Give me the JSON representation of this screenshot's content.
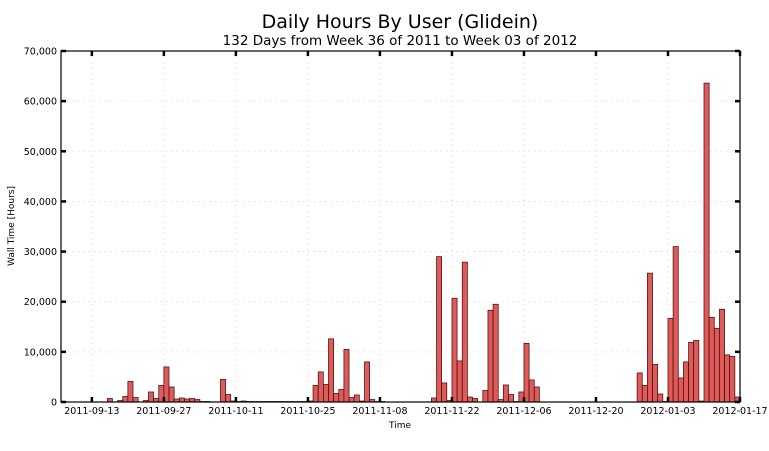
{
  "chart_data": {
    "type": "bar",
    "title": "Daily Hours By User (Glidein)",
    "subtitle": "132 Days from Week 36 of 2011 to Week 03 of 2012",
    "xlabel": "Time",
    "ylabel": "Wall Time [Hours]",
    "ylim": [
      0,
      70000
    ],
    "yticks": [
      0,
      10000,
      20000,
      30000,
      40000,
      50000,
      60000,
      70000
    ],
    "ytick_labels": [
      "0",
      "10,000",
      "20,000",
      "30,000",
      "40,000",
      "50,000",
      "60,000",
      "70,000"
    ],
    "xlim": [
      "2011-09-07",
      "2012-01-17"
    ],
    "xticks": [
      "2011-09-13",
      "2011-09-27",
      "2011-10-11",
      "2011-10-25",
      "2011-11-08",
      "2011-11-22",
      "2011-12-06",
      "2011-12-20",
      "2012-01-03",
      "2012-01-17"
    ],
    "grid": true,
    "series": [
      {
        "color": "#e05a5a",
        "x": [
          "2011-09-17",
          "2011-09-19",
          "2011-09-20",
          "2011-09-21",
          "2011-09-22",
          "2011-09-24",
          "2011-09-25",
          "2011-09-26",
          "2011-09-27",
          "2011-09-28",
          "2011-09-29",
          "2011-09-30",
          "2011-10-01",
          "2011-10-02",
          "2011-10-03",
          "2011-10-04",
          "2011-10-05",
          "2011-10-06",
          "2011-10-09",
          "2011-10-10",
          "2011-10-11",
          "2011-10-12",
          "2011-10-13",
          "2011-10-14",
          "2011-10-15",
          "2011-10-16",
          "2011-10-17",
          "2011-10-18",
          "2011-10-19",
          "2011-10-20",
          "2011-10-21",
          "2011-10-22",
          "2011-10-23",
          "2011-10-24",
          "2011-10-25",
          "2011-10-26",
          "2011-10-27",
          "2011-10-28",
          "2011-10-29",
          "2011-10-30",
          "2011-10-31",
          "2011-11-01",
          "2011-11-02",
          "2011-11-03",
          "2011-11-04",
          "2011-11-05",
          "2011-11-06",
          "2011-11-07",
          "2011-11-08",
          "2011-11-09",
          "2011-11-19",
          "2011-11-20",
          "2011-11-21",
          "2011-11-22",
          "2011-11-23",
          "2011-11-24",
          "2011-11-25",
          "2011-11-26",
          "2011-11-27",
          "2011-11-29",
          "2011-11-30",
          "2011-12-01",
          "2011-12-02",
          "2011-12-03",
          "2011-12-04",
          "2011-12-05",
          "2011-12-06",
          "2011-12-07",
          "2011-12-08",
          "2011-12-09",
          "2011-12-29",
          "2011-12-30",
          "2011-12-31",
          "2012-01-01",
          "2012-01-02",
          "2012-01-03",
          "2012-01-04",
          "2012-01-05",
          "2012-01-06",
          "2012-01-07",
          "2012-01-08",
          "2012-01-09",
          "2012-01-10",
          "2012-01-11",
          "2012-01-12",
          "2012-01-13",
          "2012-01-14",
          "2012-01-15",
          "2012-01-16",
          "2012-01-17"
        ],
        "values": [
          700,
          300,
          1100,
          4100,
          900,
          300,
          2000,
          700,
          3300,
          7000,
          3000,
          600,
          800,
          600,
          700,
          500,
          100,
          100,
          4500,
          1500,
          200,
          100,
          200,
          100,
          100,
          100,
          100,
          100,
          100,
          100,
          100,
          100,
          100,
          100,
          100,
          200,
          3300,
          6000,
          3500,
          12600,
          1700,
          2500,
          10500,
          900,
          1400,
          200,
          8000,
          500,
          100,
          100,
          800,
          29000,
          3800,
          300,
          20700,
          8200,
          27900,
          1000,
          700,
          2300,
          18300,
          19500,
          500,
          3400,
          1500,
          100,
          2000,
          11700,
          4400,
          3000,
          5800,
          3300,
          25700,
          7500,
          1600,
          100,
          16700,
          31000,
          4800,
          8000,
          11900,
          12300,
          200,
          63600,
          16900,
          14700,
          18500,
          9400,
          9100,
          1000
        ]
      }
    ]
  }
}
